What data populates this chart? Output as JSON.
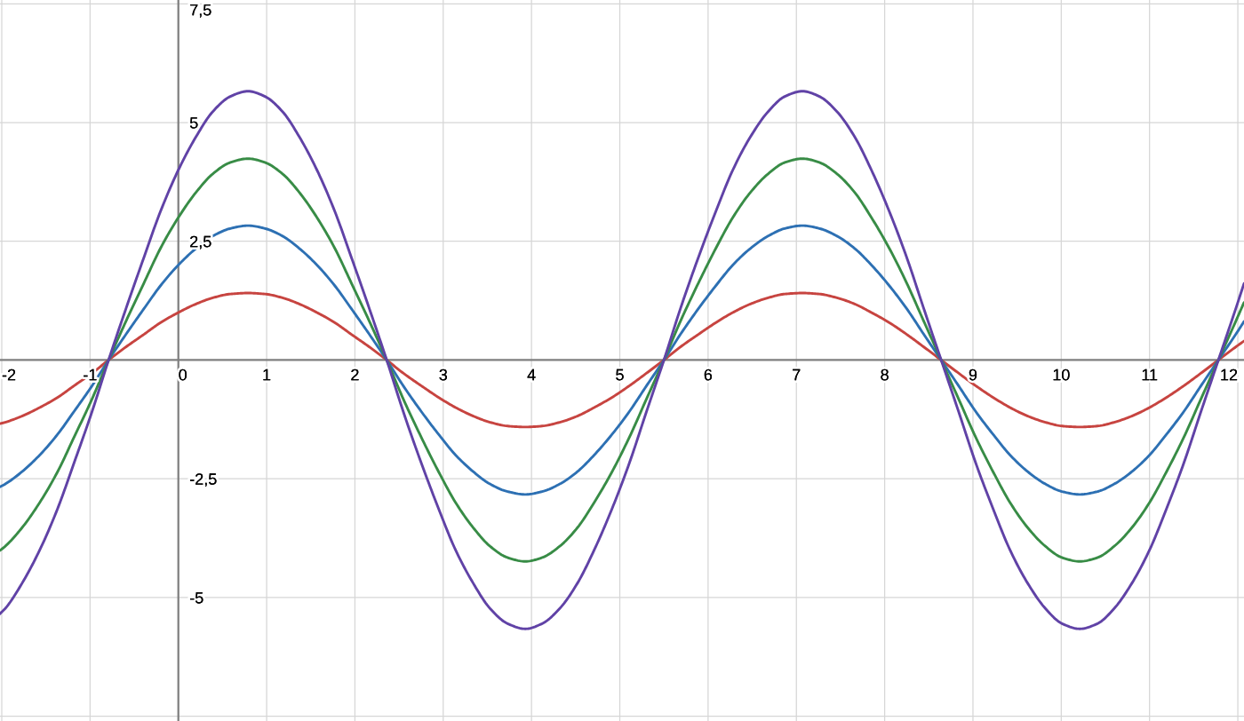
{
  "chart_data": {
    "type": "line",
    "x": [
      -2.02,
      -1.96,
      -1.77,
      -1.57,
      -1.37,
      -1.18,
      -0.98,
      -0.79,
      -0.59,
      -0.39,
      -0.2,
      0,
      0.2,
      0.39,
      0.59,
      0.79,
      0.98,
      1.18,
      1.37,
      1.57,
      1.77,
      1.96,
      2.16,
      2.36,
      2.55,
      2.75,
      2.95,
      3.14,
      3.34,
      3.53,
      3.73,
      3.93,
      4.12,
      4.32,
      4.52,
      4.71,
      4.91,
      5.11,
      5.3,
      5.5,
      5.69,
      5.89,
      6.09,
      6.28,
      6.48,
      6.68,
      6.87,
      7.07,
      7.26,
      7.46,
      7.66,
      7.85,
      8.05,
      8.25,
      8.44,
      8.64,
      8.84,
      9.03,
      9.23,
      9.42,
      9.62,
      9.82,
      10.01,
      10.21,
      10.41,
      10.6,
      10.8,
      11.0,
      11.19,
      11.39,
      11.58,
      11.78,
      11.98,
      12.07
    ],
    "series": [
      {
        "color": "#c74440",
        "values": [
          -1.34,
          -1.31,
          -1.18,
          -1.0,
          -0.79,
          -0.54,
          -0.28,
          0,
          0.28,
          0.54,
          0.79,
          1.0,
          1.18,
          1.31,
          1.39,
          1.41,
          1.39,
          1.31,
          1.18,
          1.0,
          0.79,
          0.54,
          0.28,
          0,
          -0.28,
          -0.54,
          -0.79,
          -1.0,
          -1.18,
          -1.31,
          -1.39,
          -1.41,
          -1.39,
          -1.31,
          -1.18,
          -1.0,
          -0.79,
          -0.54,
          -0.28,
          0,
          0.28,
          0.54,
          0.79,
          1.0,
          1.18,
          1.31,
          1.39,
          1.41,
          1.39,
          1.31,
          1.18,
          1.0,
          0.79,
          0.54,
          0.28,
          0,
          -0.28,
          -0.54,
          -0.79,
          -1.0,
          -1.18,
          -1.31,
          -1.39,
          -1.41,
          -1.39,
          -1.31,
          -1.18,
          -1.0,
          -0.79,
          -0.54,
          -0.28,
          0,
          0.28,
          0.4
        ]
      },
      {
        "color": "#2d70b3",
        "values": [
          -2.67,
          -2.61,
          -2.35,
          -2.0,
          -1.57,
          -1.08,
          -0.55,
          0,
          0.55,
          1.08,
          1.57,
          2.0,
          2.35,
          2.61,
          2.77,
          2.83,
          2.77,
          2.61,
          2.35,
          2.0,
          1.57,
          1.08,
          0.55,
          0,
          -0.55,
          -1.08,
          -1.57,
          -2.0,
          -2.35,
          -2.61,
          -2.77,
          -2.83,
          -2.77,
          -2.61,
          -2.35,
          -2.0,
          -1.57,
          -1.08,
          -0.55,
          0,
          0.55,
          1.08,
          1.57,
          2.0,
          2.35,
          2.61,
          2.77,
          2.83,
          2.77,
          2.61,
          2.35,
          2.0,
          1.57,
          1.08,
          0.55,
          0,
          -0.55,
          -1.08,
          -1.57,
          -2.0,
          -2.35,
          -2.61,
          -2.77,
          -2.83,
          -2.77,
          -2.61,
          -2.35,
          -2.0,
          -1.57,
          -1.08,
          -0.55,
          0,
          0.55,
          0.81
        ]
      },
      {
        "color": "#388c46",
        "values": [
          -4.01,
          -3.92,
          -3.53,
          -3.0,
          -2.36,
          -1.62,
          -0.83,
          0,
          0.83,
          1.62,
          2.36,
          3.0,
          3.53,
          3.92,
          4.16,
          4.24,
          4.16,
          3.92,
          3.53,
          3.0,
          2.36,
          1.62,
          0.83,
          0,
          -0.83,
          -1.62,
          -2.36,
          -3.0,
          -3.53,
          -3.92,
          -4.16,
          -4.24,
          -4.16,
          -3.92,
          -3.53,
          -3.0,
          -2.36,
          -1.62,
          -0.83,
          0,
          0.83,
          1.62,
          2.36,
          3.0,
          3.53,
          3.92,
          4.16,
          4.24,
          4.16,
          3.92,
          3.53,
          3.0,
          2.36,
          1.62,
          0.83,
          0,
          -0.83,
          -1.62,
          -2.36,
          -3.0,
          -3.53,
          -3.92,
          -4.16,
          -4.24,
          -4.16,
          -3.92,
          -3.53,
          -3.0,
          -2.36,
          -1.62,
          -0.83,
          0,
          0.83,
          1.21
        ]
      },
      {
        "color": "#6042a6",
        "values": [
          -5.34,
          -5.23,
          -4.7,
          -4.0,
          -3.14,
          -2.16,
          -1.1,
          0,
          1.1,
          2.16,
          3.14,
          4.0,
          4.7,
          5.23,
          5.55,
          5.66,
          5.55,
          5.23,
          4.7,
          4.0,
          3.14,
          2.16,
          1.1,
          0,
          -1.1,
          -2.16,
          -3.14,
          -4.0,
          -4.7,
          -5.23,
          -5.55,
          -5.66,
          -5.55,
          -5.23,
          -4.7,
          -4.0,
          -3.14,
          -2.16,
          -1.1,
          0,
          1.1,
          2.16,
          3.14,
          4.0,
          4.7,
          5.23,
          5.55,
          5.66,
          5.55,
          5.23,
          4.7,
          4.0,
          3.14,
          2.16,
          1.1,
          0,
          -1.1,
          -2.16,
          -3.14,
          -4.0,
          -4.7,
          -5.23,
          -5.55,
          -5.66,
          -5.55,
          -5.23,
          -4.7,
          -4.0,
          -3.14,
          -2.16,
          -1.1,
          0,
          1.1,
          1.61
        ]
      }
    ],
    "xlim": [
      -2.02,
      12.07
    ],
    "ylim": [
      -7.6,
      7.58
    ],
    "xticks": [
      -2,
      -1,
      0,
      1,
      2,
      3,
      4,
      5,
      6,
      7,
      8,
      9,
      10,
      11,
      12
    ],
    "yticks": [
      {
        "value": -7.5,
        "label": null
      },
      -5,
      {
        "value": -2.5,
        "label": "-2,5"
      },
      {
        "value": 2.5,
        "label": "2,5"
      },
      5,
      {
        "value": 7.5,
        "label": "7,5"
      }
    ],
    "grid": true
  }
}
